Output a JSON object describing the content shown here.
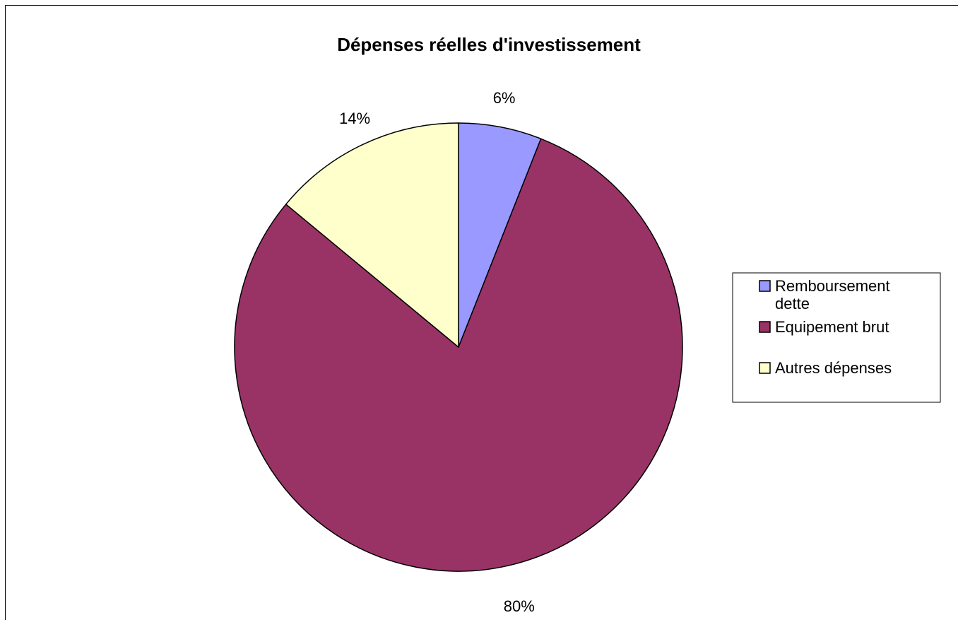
{
  "chart_data": {
    "type": "pie",
    "title": "Dépenses réelles d'investissement",
    "categories": [
      "Remboursement dette",
      "Equipement brut",
      "Autres dépenses"
    ],
    "values": [
      6,
      80,
      14
    ],
    "data_labels": [
      "6%",
      "80%",
      "14%"
    ],
    "legend_lines": [
      [
        "Remboursement",
        "dette"
      ],
      [
        "Equipement brut"
      ],
      [
        "Autres dépenses"
      ]
    ],
    "colors": [
      "#9999ff",
      "#993366",
      "#ffffcc"
    ],
    "legend_position": "right",
    "start_angle": "12 o'clock",
    "direction": "clockwise"
  }
}
